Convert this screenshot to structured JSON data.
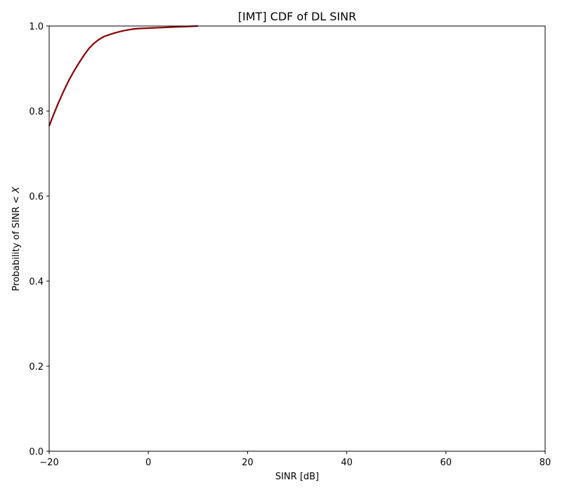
{
  "chart_data": {
    "type": "line",
    "title": "[IMT] CDF of DL SINR",
    "xlabel": "SINR [dB]",
    "ylabel": "Probability of SINR < X",
    "xlim": [
      -20,
      80
    ],
    "ylim": [
      0.0,
      1.0
    ],
    "xticks": [
      -20,
      0,
      20,
      40,
      60,
      80
    ],
    "yticks": [
      0.0,
      0.2,
      0.4,
      0.6,
      0.8,
      1.0
    ],
    "xtick_labels": [
      "−20",
      "0",
      "20",
      "40",
      "60",
      "80"
    ],
    "ytick_labels": [
      "0.0",
      "0.2",
      "0.4",
      "0.6",
      "0.8",
      "1.0"
    ],
    "grid": false,
    "legend": false,
    "series": [
      {
        "color": "#8b0000",
        "x": [
          -20,
          -19,
          -18,
          -17,
          -16,
          -15,
          -14,
          -13,
          -12,
          -11,
          -10,
          -9,
          -8,
          -7,
          -6,
          -5,
          -4,
          -3,
          -2,
          0,
          2,
          4,
          6,
          8,
          10
        ],
        "y": [
          0.765,
          0.795,
          0.823,
          0.849,
          0.873,
          0.894,
          0.913,
          0.931,
          0.947,
          0.959,
          0.968,
          0.975,
          0.979,
          0.983,
          0.986,
          0.989,
          0.991,
          0.993,
          0.994,
          0.995,
          0.996,
          0.997,
          0.998,
          0.999,
          1.0
        ]
      }
    ]
  }
}
